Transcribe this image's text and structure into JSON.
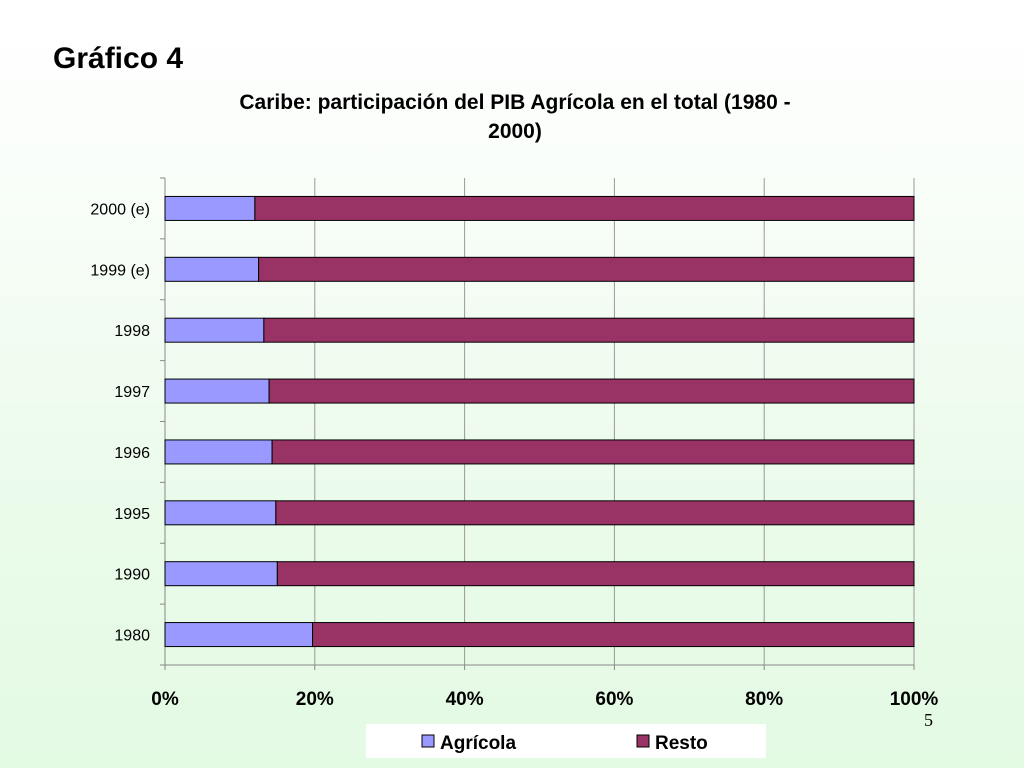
{
  "slide": {
    "title": "Gráfico 4",
    "page_number": "5"
  },
  "chart_data": {
    "type": "bar",
    "orientation": "horizontal",
    "stacked": "percent",
    "title": "Caribe: participación del PIB Agrícola en el total (1980 - 2000)",
    "title_lines": [
      "Caribe: participación del PIB Agrícola en el total (1980 -",
      "2000)"
    ],
    "categories": [
      "2000 (e)",
      "1999 (e)",
      "1998",
      "1997",
      "1996",
      "1995",
      "1990",
      "1980"
    ],
    "series": [
      {
        "name": "Agrícola",
        "color": "#9999ff",
        "values": [
          12,
          12.5,
          13.2,
          13.9,
          14.3,
          14.8,
          15.0,
          19.7
        ]
      },
      {
        "name": "Resto",
        "color": "#993366",
        "values": [
          88,
          87.5,
          86.8,
          86.1,
          85.7,
          85.2,
          85.0,
          80.3
        ]
      }
    ],
    "xlim": [
      0,
      100
    ],
    "x_ticks": [
      "0%",
      "20%",
      "40%",
      "60%",
      "80%",
      "100%"
    ],
    "x_tick_values": [
      0,
      20,
      40,
      60,
      80,
      100
    ],
    "grid": "vertical",
    "legend_position": "bottom",
    "bar_outline": "#000000"
  }
}
